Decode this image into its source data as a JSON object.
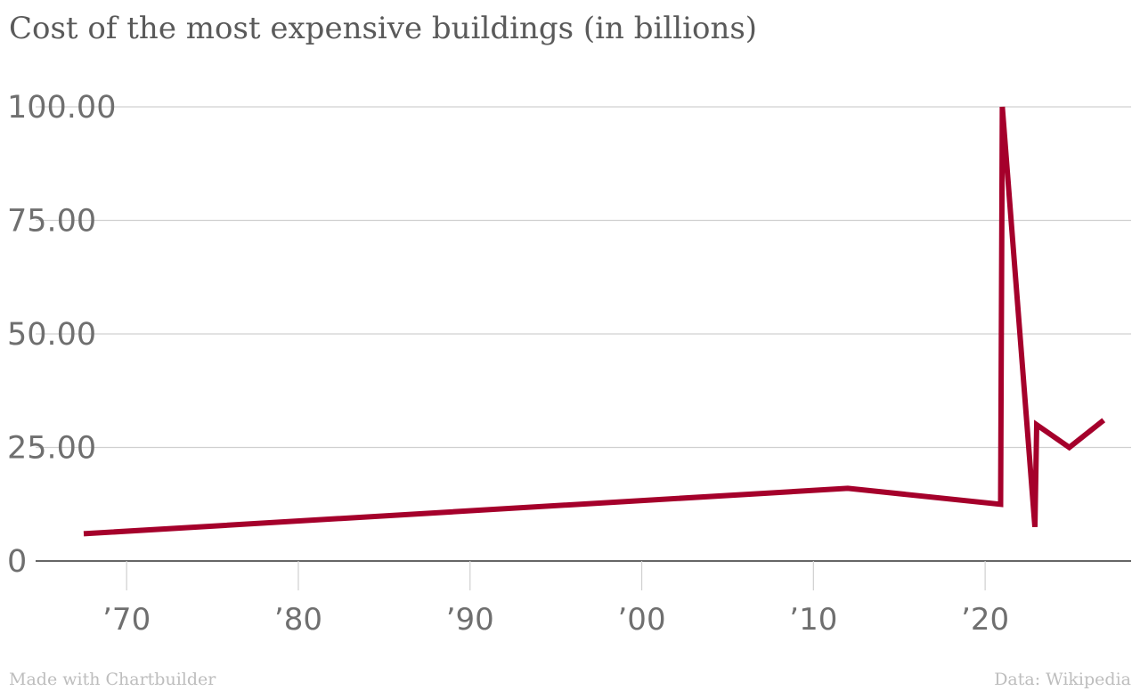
{
  "title": "Cost of the most expensive buildings (in billions)",
  "footer": {
    "credit": "Made with Chartbuilder",
    "source": "Data: Wikipedia"
  },
  "colors": {
    "line": "#a5002b",
    "grid": "#d0d0d0",
    "axis": "#333333"
  },
  "chart_data": {
    "type": "line",
    "title": "Cost of the most expensive buildings (in billions)",
    "xlabel": "",
    "ylabel": "",
    "xlim": [
      1964.7,
      2028.5
    ],
    "ylim": [
      0,
      100
    ],
    "y_ticks": [
      0,
      25,
      50,
      75,
      100
    ],
    "y_tick_labels": [
      "0",
      "25.00",
      "50.00",
      "75.00",
      "100.00"
    ],
    "x_ticks": [
      1970,
      1980,
      1990,
      2000,
      2010,
      2020
    ],
    "x_tick_labels": [
      "’70",
      "’80",
      "’90",
      "’00",
      "’10",
      "’20"
    ],
    "grid": true,
    "series": [
      {
        "x": [
          1967.5,
          2012.0,
          2020.9,
          2021.0,
          2022.9,
          2023.0,
          2024.9,
          2026.9
        ],
        "y": [
          6.0,
          16.0,
          12.5,
          100.0,
          7.5,
          30.0,
          25.0,
          31.0
        ]
      }
    ]
  }
}
